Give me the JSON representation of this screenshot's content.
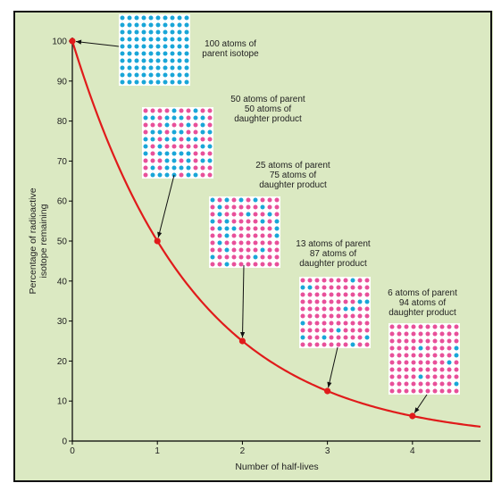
{
  "chart_data": {
    "type": "line",
    "xlabel": "Number of half-lives",
    "ylabel": [
      "Percentage of radioactive",
      "isotope remaining"
    ],
    "xlim": [
      0,
      4.8
    ],
    "ylim": [
      0,
      100
    ],
    "x_ticks": [
      0,
      1,
      2,
      3,
      4
    ],
    "y_ticks": [
      0,
      10,
      20,
      30,
      40,
      50,
      60,
      70,
      80,
      90,
      100
    ],
    "grid": false,
    "series": [
      {
        "name": "",
        "x": [
          0,
          1,
          2,
          3,
          4
        ],
        "y": [
          100,
          50,
          25,
          12.5,
          6.25
        ]
      }
    ],
    "annotations": [
      {
        "x": 0,
        "y": 100,
        "parent_atoms": 100,
        "daughter_atoms": 0,
        "lines": [
          "100 atoms of",
          "parent isotope"
        ]
      },
      {
        "x": 1,
        "y": 50,
        "parent_atoms": 50,
        "daughter_atoms": 50,
        "lines": [
          "50 atoms of parent",
          "50 atoms of",
          "daughter product"
        ]
      },
      {
        "x": 2,
        "y": 25,
        "parent_atoms": 25,
        "daughter_atoms": 75,
        "lines": [
          "25 atoms of parent",
          "75 atoms of",
          "daughter product"
        ]
      },
      {
        "x": 3,
        "y": 12.5,
        "parent_atoms": 13,
        "daughter_atoms": 87,
        "lines": [
          "13 atoms of parent",
          "87 atoms of",
          "daughter product"
        ]
      },
      {
        "x": 4,
        "y": 6.25,
        "parent_atoms": 6,
        "daughter_atoms": 94,
        "lines": [
          "6 atoms of parent",
          "94 atoms of",
          "daughter product"
        ]
      }
    ],
    "colors": {
      "plot_background": "#dbe9c2",
      "curve": "#e01b1b",
      "parent_atom": "#19a6d8",
      "daughter_atom": "#e8509a",
      "box_background": "#ffffff",
      "frame": "#000000"
    }
  }
}
